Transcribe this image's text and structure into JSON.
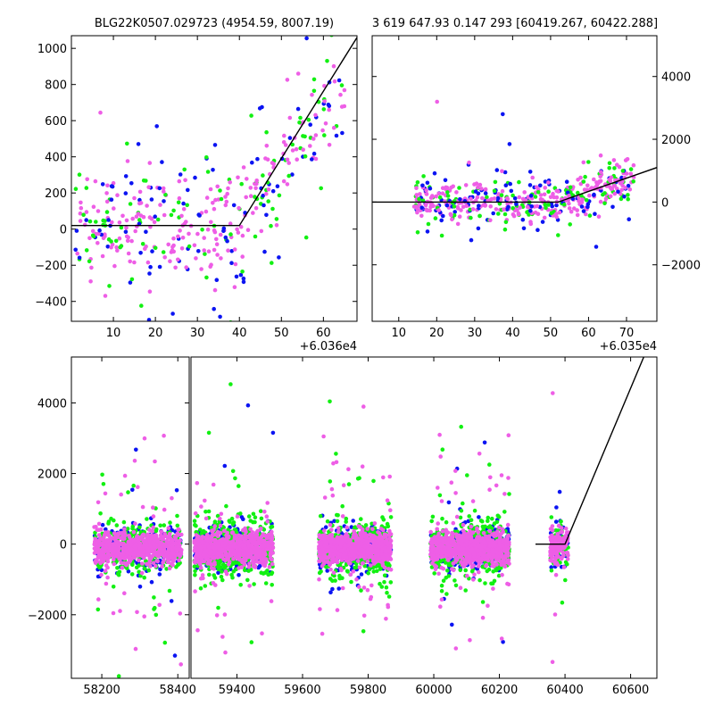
{
  "figure": {
    "title_left": "BLG22K0507.029723 (4954.59, 8007.19)",
    "title_right": "3 619 647.93 0.147 293 [60419.267, 60422.288]"
  },
  "colors": {
    "blue": "#0b14f2",
    "green": "#12f012",
    "magenta": "#ee5ee6",
    "line": "#000000"
  },
  "chart_data": [
    {
      "id": "top-left",
      "type": "scatter",
      "title": "BLG22K0507.029723 (4954.59, 8007.19)",
      "x_offset_label": "+6.036e4",
      "xlim": [
        0,
        68
      ],
      "ylim": [
        -510,
        1070
      ],
      "xticks": [
        10,
        20,
        30,
        40,
        50,
        60
      ],
      "yticks": [
        -400,
        -200,
        0,
        200,
        400,
        600,
        800,
        1000
      ],
      "y_axis_side": "left",
      "model": [
        [
          0,
          20
        ],
        [
          40,
          20
        ],
        [
          68,
          1060
        ]
      ],
      "seed": 11,
      "n": 420,
      "series": [
        {
          "color": "magenta",
          "weight": 0.55
        },
        {
          "color": "green",
          "weight": 0.25
        },
        {
          "color": "blue",
          "weight": 0.2
        }
      ]
    },
    {
      "id": "top-right",
      "type": "scatter",
      "x_offset_label": "+6.035e4",
      "xlim": [
        3,
        78
      ],
      "ylim": [
        -3800,
        5300
      ],
      "xticks": [
        10,
        20,
        30,
        40,
        50,
        60,
        70
      ],
      "yticks": [
        -2000,
        0,
        2000,
        4000
      ],
      "y_axis_side": "right",
      "model": [
        [
          3,
          0
        ],
        [
          52,
          0
        ],
        [
          78,
          1100
        ]
      ],
      "seed": 23,
      "n": 520,
      "series": [
        {
          "color": "magenta",
          "weight": 0.55
        },
        {
          "color": "green",
          "weight": 0.22
        },
        {
          "color": "blue",
          "weight": 0.23
        }
      ]
    },
    {
      "id": "bottom-left",
      "type": "scatter",
      "xlim": [
        58120,
        58430
      ],
      "ylim": [
        -3800,
        5300
      ],
      "xticks": [
        58200,
        58400
      ],
      "yticks": [
        -2000,
        0,
        2000,
        4000
      ],
      "y_axis_side": "left",
      "clusters": [
        [
          58180,
          58410
        ]
      ],
      "seed": 37,
      "n": 1100,
      "series": [
        {
          "color": "blue",
          "weight": 0.2
        },
        {
          "color": "green",
          "weight": 0.25
        },
        {
          "color": "magenta",
          "weight": 0.55
        }
      ]
    },
    {
      "id": "bottom-right",
      "type": "scatter",
      "xlim": [
        59260,
        60680
      ],
      "ylim": [
        -3800,
        5300
      ],
      "xticks": [
        59400,
        59600,
        59800,
        60000,
        60200,
        60400,
        60600
      ],
      "yticks": [],
      "y_axis_side": "none",
      "clusters": [
        [
          59270,
          59510
        ],
        [
          59650,
          59870
        ],
        [
          59990,
          60230
        ],
        [
          60355,
          60410
        ]
      ],
      "cluster_counts": [
        1400,
        1500,
        1400,
        220
      ],
      "model": [
        [
          60310,
          0
        ],
        [
          60400,
          0
        ],
        [
          60640,
          5300
        ]
      ],
      "seed": 53,
      "series": [
        {
          "color": "blue",
          "weight": 0.22
        },
        {
          "color": "green",
          "weight": 0.25
        },
        {
          "color": "magenta",
          "weight": 0.53
        }
      ]
    }
  ]
}
